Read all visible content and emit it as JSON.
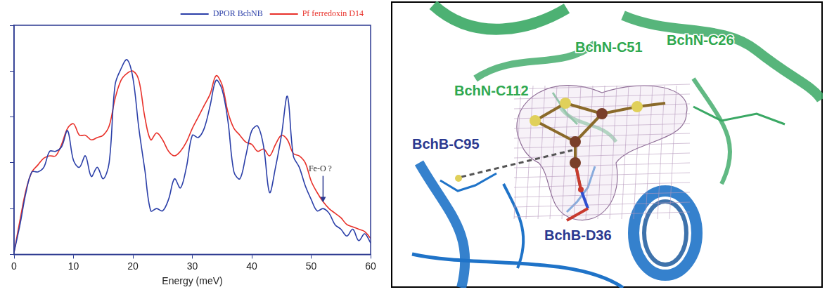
{
  "chart_data": {
    "type": "line",
    "x_label": "Energy (meV)",
    "x": [
      0,
      1,
      2,
      3,
      4,
      5,
      6,
      7,
      8,
      9,
      10,
      11,
      12,
      13,
      14,
      15,
      16,
      17,
      18,
      19,
      20,
      21,
      22,
      23,
      24,
      25,
      26,
      27,
      28,
      29,
      30,
      31,
      32,
      33,
      34,
      35,
      36,
      37,
      38,
      39,
      40,
      41,
      42,
      43,
      44,
      45,
      46,
      47,
      48,
      49,
      50,
      51,
      52,
      53,
      54,
      55,
      56,
      57,
      58,
      59,
      60
    ],
    "series": [
      {
        "name": "DPOR BchNB",
        "color": "#2b3fa8",
        "values": [
          0.1,
          1.3,
          2.7,
          3.6,
          3.6,
          3.8,
          4.5,
          4.5,
          4.7,
          5.4,
          4.1,
          3.8,
          4.3,
          3.4,
          3.8,
          3.3,
          4.0,
          7.4,
          8.1,
          8.5,
          7.7,
          5.5,
          3.7,
          1.9,
          2.0,
          1.9,
          2.4,
          3.3,
          2.9,
          3.8,
          5.2,
          5.1,
          5.5,
          6.5,
          7.6,
          7.2,
          5.8,
          3.6,
          3.3,
          4.3,
          5.4,
          5.6,
          4.7,
          2.7,
          3.8,
          5.2,
          6.9,
          4.3,
          3.8,
          3.0,
          2.4,
          1.9,
          2.0,
          1.8,
          1.3,
          1.1,
          0.8,
          1.1,
          0.6,
          0.9,
          0.5
        ]
      },
      {
        "name": "Pf ferredoxin D14",
        "color": "#e8312a",
        "values": [
          0.1,
          1.5,
          2.8,
          3.6,
          3.9,
          4.2,
          4.3,
          4.3,
          4.8,
          5.5,
          5.7,
          5.2,
          5.2,
          5.0,
          5.1,
          5.2,
          5.6,
          6.8,
          7.6,
          7.9,
          8.0,
          7.6,
          6.0,
          5.0,
          5.3,
          5.0,
          4.5,
          4.3,
          4.5,
          4.9,
          5.5,
          6.0,
          6.5,
          7.0,
          7.8,
          7.4,
          6.2,
          5.5,
          5.2,
          4.9,
          4.8,
          4.5,
          4.6,
          4.3,
          4.8,
          5.2,
          5.0,
          4.4,
          4.3,
          4.0,
          3.2,
          2.7,
          2.3,
          2.0,
          1.8,
          1.6,
          1.3,
          1.2,
          1.1,
          1.0,
          0.7
        ]
      }
    ],
    "xlim": [
      0,
      60
    ],
    "xticks": [
      0,
      10,
      20,
      30,
      40,
      50,
      60
    ],
    "ylim": [
      0,
      10
    ],
    "yticks": [
      0,
      2,
      4,
      6,
      8,
      10
    ],
    "tick_labels": "x",
    "grid": false,
    "legend": "top right",
    "annotations": [
      {
        "text": "Fe-O ?",
        "x": 52,
        "y": 2.2
      }
    ]
  },
  "structure_panel": {
    "labels": [
      {
        "text": "BchN-C51",
        "color": "#2fa84f"
      },
      {
        "text": "BchN-C26",
        "color": "#2fa84f"
      },
      {
        "text": "BchN-C112",
        "color": "#2fa84f"
      },
      {
        "text": "BchB-C95",
        "color": "#2b3990"
      },
      {
        "text": "BchB-D36",
        "color": "#2b3990"
      }
    ]
  }
}
